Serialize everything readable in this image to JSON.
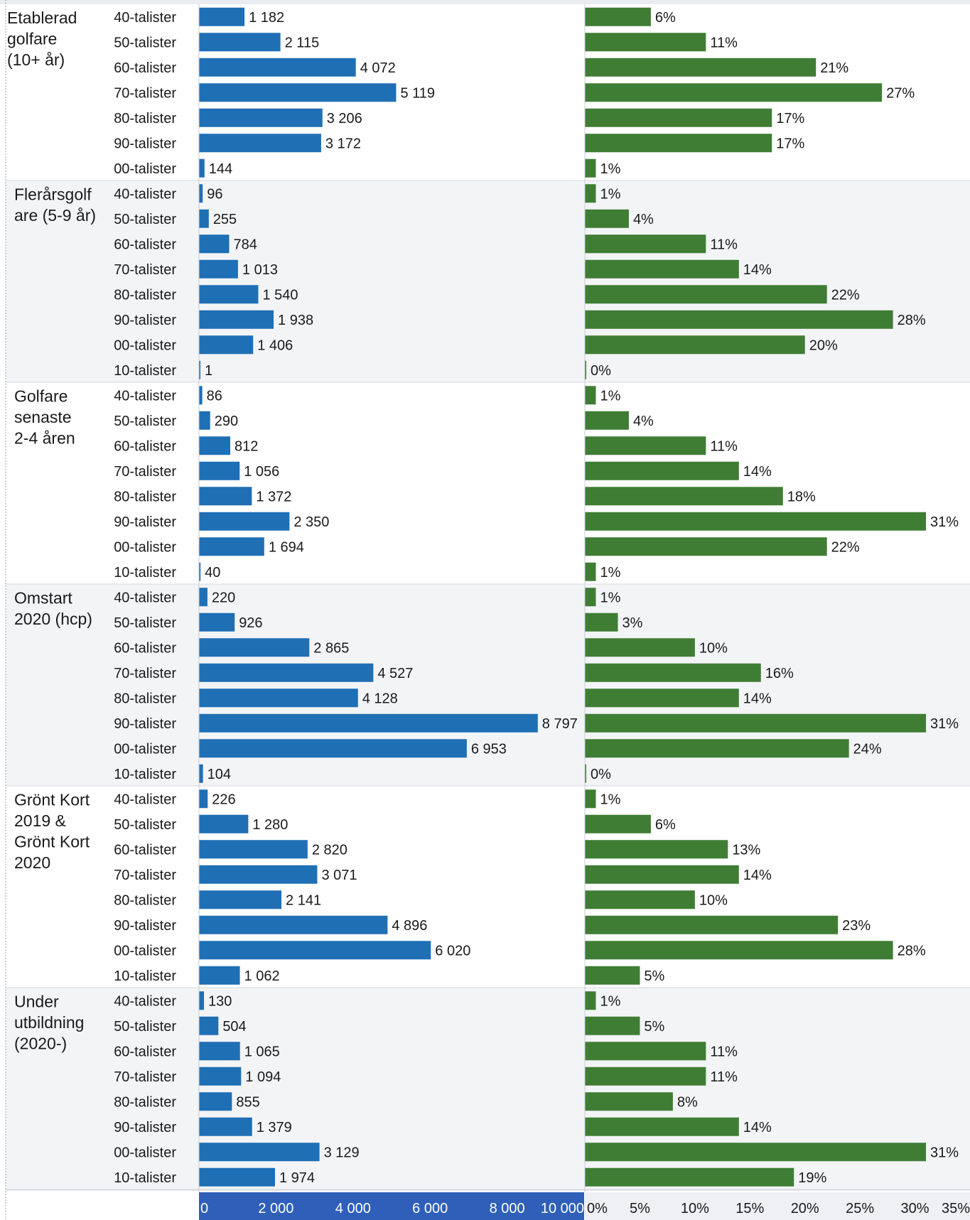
{
  "chart_data": {
    "type": "bar",
    "orientation": "horizontal",
    "colors": {
      "count_bar": "#1f6fb5",
      "share_bar": "#3f7d34",
      "axis_band": "#2f5fb8",
      "alt_band": "#f3f4f6",
      "text": "#1a1a1a"
    },
    "groups": [
      {
        "label_lines": [
          "Etablerad",
          "golfare",
          "(10+ år)"
        ],
        "rows": [
          {
            "category": "40-talister",
            "count": 1182,
            "count_label": "1 182",
            "share": 6,
            "share_label": "6%"
          },
          {
            "category": "50-talister",
            "count": 2115,
            "count_label": "2 115",
            "share": 11,
            "share_label": "11%"
          },
          {
            "category": "60-talister",
            "count": 4072,
            "count_label": "4 072",
            "share": 21,
            "share_label": "21%"
          },
          {
            "category": "70-talister",
            "count": 5119,
            "count_label": "5 119",
            "share": 27,
            "share_label": "27%"
          },
          {
            "category": "80-talister",
            "count": 3206,
            "count_label": "3 206",
            "share": 17,
            "share_label": "17%"
          },
          {
            "category": "90-talister",
            "count": 3172,
            "count_label": "3 172",
            "share": 17,
            "share_label": "17%"
          },
          {
            "category": "00-talister",
            "count": 144,
            "count_label": "144",
            "share": 1,
            "share_label": "1%"
          }
        ]
      },
      {
        "label_lines": [
          "Flerårsgolf",
          "are (5-9 år)"
        ],
        "rows": [
          {
            "category": "40-talister",
            "count": 96,
            "count_label": "96",
            "share": 1,
            "share_label": "1%"
          },
          {
            "category": "50-talister",
            "count": 255,
            "count_label": "255",
            "share": 4,
            "share_label": "4%"
          },
          {
            "category": "60-talister",
            "count": 784,
            "count_label": "784",
            "share": 11,
            "share_label": "11%"
          },
          {
            "category": "70-talister",
            "count": 1013,
            "count_label": "1 013",
            "share": 14,
            "share_label": "14%"
          },
          {
            "category": "80-talister",
            "count": 1540,
            "count_label": "1 540",
            "share": 22,
            "share_label": "22%"
          },
          {
            "category": "90-talister",
            "count": 1938,
            "count_label": "1 938",
            "share": 28,
            "share_label": "28%"
          },
          {
            "category": "00-talister",
            "count": 1406,
            "count_label": "1 406",
            "share": 20,
            "share_label": "20%"
          },
          {
            "category": "10-talister",
            "count": 1,
            "count_label": "1",
            "share": 0,
            "share_label": "0%"
          }
        ]
      },
      {
        "label_lines": [
          "Golfare",
          "senaste",
          "2-4 åren"
        ],
        "rows": [
          {
            "category": "40-talister",
            "count": 86,
            "count_label": "86",
            "share": 1,
            "share_label": "1%"
          },
          {
            "category": "50-talister",
            "count": 290,
            "count_label": "290",
            "share": 4,
            "share_label": "4%"
          },
          {
            "category": "60-talister",
            "count": 812,
            "count_label": "812",
            "share": 11,
            "share_label": "11%"
          },
          {
            "category": "70-talister",
            "count": 1056,
            "count_label": "1 056",
            "share": 14,
            "share_label": "14%"
          },
          {
            "category": "80-talister",
            "count": 1372,
            "count_label": "1 372",
            "share": 18,
            "share_label": "18%"
          },
          {
            "category": "90-talister",
            "count": 2350,
            "count_label": "2 350",
            "share": 31,
            "share_label": "31%"
          },
          {
            "category": "00-talister",
            "count": 1694,
            "count_label": "1 694",
            "share": 22,
            "share_label": "22%"
          },
          {
            "category": "10-talister",
            "count": 40,
            "count_label": "40",
            "share": 1,
            "share_label": "1%"
          }
        ]
      },
      {
        "label_lines": [
          "Omstart",
          "2020 (hcp)"
        ],
        "rows": [
          {
            "category": "40-talister",
            "count": 220,
            "count_label": "220",
            "share": 1,
            "share_label": "1%"
          },
          {
            "category": "50-talister",
            "count": 926,
            "count_label": "926",
            "share": 3,
            "share_label": "3%"
          },
          {
            "category": "60-talister",
            "count": 2865,
            "count_label": "2 865",
            "share": 10,
            "share_label": "10%"
          },
          {
            "category": "70-talister",
            "count": 4527,
            "count_label": "4 527",
            "share": 16,
            "share_label": "16%"
          },
          {
            "category": "80-talister",
            "count": 4128,
            "count_label": "4 128",
            "share": 14,
            "share_label": "14%"
          },
          {
            "category": "90-talister",
            "count": 8797,
            "count_label": "8 797",
            "share": 31,
            "share_label": "31%"
          },
          {
            "category": "00-talister",
            "count": 6953,
            "count_label": "6 953",
            "share": 24,
            "share_label": "24%"
          },
          {
            "category": "10-talister",
            "count": 104,
            "count_label": "104",
            "share": 0,
            "share_label": "0%"
          }
        ]
      },
      {
        "label_lines": [
          "Grönt Kort",
          "2019 &",
          "Grönt Kort",
          "2020"
        ],
        "rows": [
          {
            "category": "40-talister",
            "count": 226,
            "count_label": "226",
            "share": 1,
            "share_label": "1%"
          },
          {
            "category": "50-talister",
            "count": 1280,
            "count_label": "1 280",
            "share": 6,
            "share_label": "6%"
          },
          {
            "category": "60-talister",
            "count": 2820,
            "count_label": "2 820",
            "share": 13,
            "share_label": "13%"
          },
          {
            "category": "70-talister",
            "count": 3071,
            "count_label": "3 071",
            "share": 14,
            "share_label": "14%"
          },
          {
            "category": "80-talister",
            "count": 2141,
            "count_label": "2 141",
            "share": 10,
            "share_label": "10%"
          },
          {
            "category": "90-talister",
            "count": 4896,
            "count_label": "4 896",
            "share": 23,
            "share_label": "23%"
          },
          {
            "category": "00-talister",
            "count": 6020,
            "count_label": "6 020",
            "share": 28,
            "share_label": "28%"
          },
          {
            "category": "10-talister",
            "count": 1062,
            "count_label": "1 062",
            "share": 5,
            "share_label": "5%"
          }
        ]
      },
      {
        "label_lines": [
          "Under",
          "utbildning",
          "(2020-)"
        ],
        "rows": [
          {
            "category": "40-talister",
            "count": 130,
            "count_label": "130",
            "share": 1,
            "share_label": "1%"
          },
          {
            "category": "50-talister",
            "count": 504,
            "count_label": "504",
            "share": 5,
            "share_label": "5%"
          },
          {
            "category": "60-talister",
            "count": 1065,
            "count_label": "1 065",
            "share": 11,
            "share_label": "11%"
          },
          {
            "category": "70-talister",
            "count": 1094,
            "count_label": "1 094",
            "share": 11,
            "share_label": "11%"
          },
          {
            "category": "80-talister",
            "count": 855,
            "count_label": "855",
            "share": 8,
            "share_label": "8%"
          },
          {
            "category": "90-talister",
            "count": 1379,
            "count_label": "1 379",
            "share": 14,
            "share_label": "14%"
          },
          {
            "category": "00-talister",
            "count": 3129,
            "count_label": "3 129",
            "share": 31,
            "share_label": "31%"
          },
          {
            "category": "10-talister",
            "count": 1974,
            "count_label": "1 974",
            "share": 19,
            "share_label": "19%"
          }
        ]
      }
    ],
    "count_axis": {
      "xlim": [
        0,
        10000
      ],
      "ticks": [
        0,
        2000,
        4000,
        6000,
        8000,
        10000
      ],
      "tick_labels": [
        "0",
        "2 000",
        "4 000",
        "6 000",
        "8 000",
        "10 000"
      ]
    },
    "share_axis": {
      "xlim": [
        0,
        35
      ],
      "ticks": [
        0,
        5,
        10,
        15,
        20,
        25,
        30,
        35
      ],
      "tick_labels": [
        "0%",
        "5%",
        "10%",
        "15%",
        "20%",
        "25%",
        "30%",
        "35%"
      ]
    },
    "grid": false,
    "legend": "none"
  }
}
